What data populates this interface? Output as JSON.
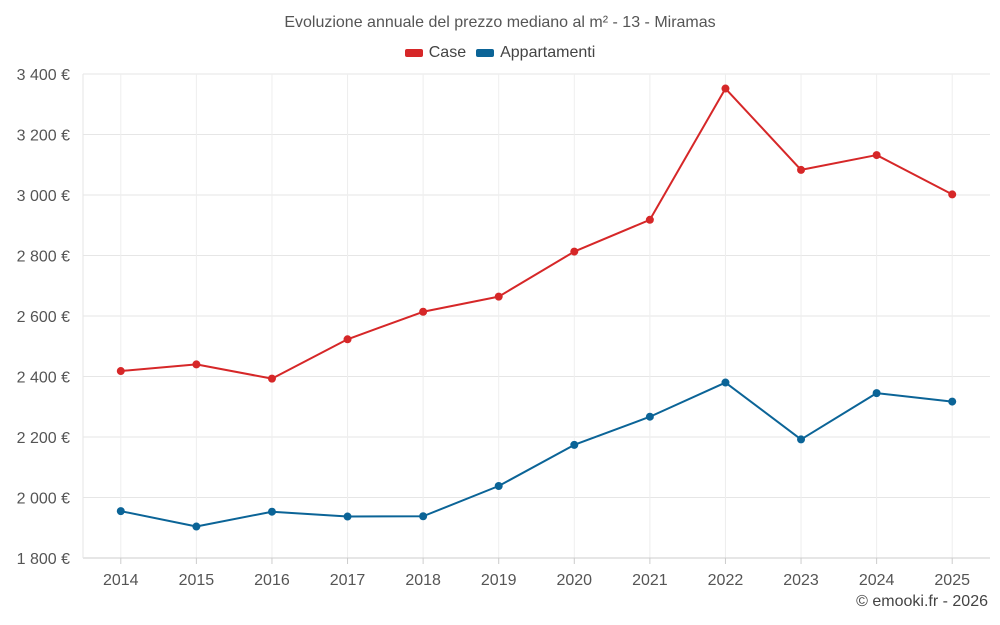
{
  "chart_data": {
    "type": "line",
    "title": "Evoluzione annuale del prezzo mediano al m² - 13 - Miramas",
    "categories": [
      "2014",
      "2015",
      "2016",
      "2017",
      "2018",
      "2019",
      "2020",
      "2021",
      "2022",
      "2023",
      "2024",
      "2025"
    ],
    "series": [
      {
        "name": "Case",
        "color": "#d62728",
        "values": [
          2418,
          2440,
          2393,
          2523,
          2614,
          2664,
          2813,
          2918,
          3352,
          3083,
          3132,
          3002
        ]
      },
      {
        "name": "Appartamenti",
        "color": "#0b6497",
        "values": [
          1955,
          1904,
          1953,
          1937,
          1938,
          2038,
          2174,
          2267,
          2380,
          2192,
          2345,
          2317
        ]
      }
    ],
    "ylim": [
      1800,
      3400
    ],
    "yticks": [
      1800,
      2000,
      2200,
      2400,
      2600,
      2800,
      3000,
      3200,
      3400
    ],
    "ytick_labels": [
      "1 800 €",
      "2 000 €",
      "2 200 €",
      "2 400 €",
      "2 600 €",
      "2 800 €",
      "3 000 €",
      "3 200 €",
      "3 400 €"
    ],
    "grid": true,
    "legend_position": "top-center"
  },
  "copyright": "© emooki.fr - 2026"
}
